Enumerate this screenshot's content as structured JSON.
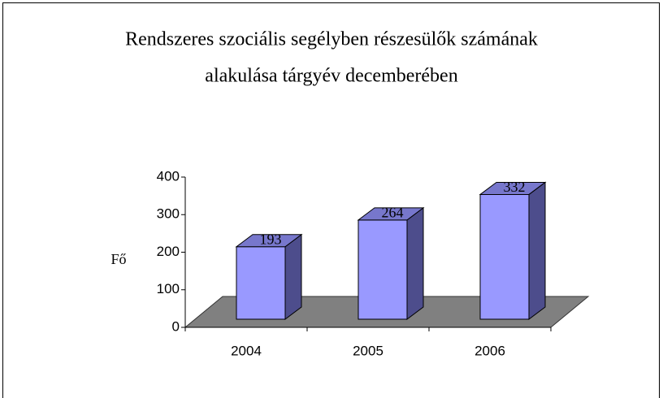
{
  "chart_data": {
    "type": "bar3d",
    "title": [
      "Rendszeres szociális segélyben részesülők számának",
      "alakulása tárgyév decemberében"
    ],
    "y_label": "Fő",
    "categories": [
      "2004",
      "2005",
      "2006"
    ],
    "values": [
      193,
      264,
      332
    ],
    "color": "#9999ff",
    "ylim": [
      0,
      400
    ],
    "yticks": [
      0,
      100,
      200,
      300,
      400
    ]
  }
}
